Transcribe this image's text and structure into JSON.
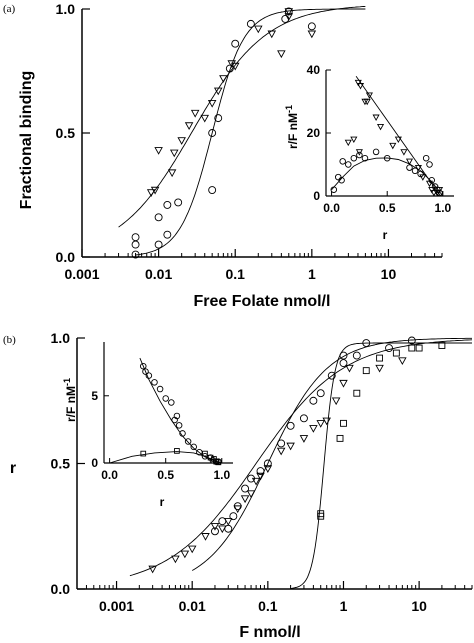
{
  "chart_data": [
    {
      "panel": "(a)",
      "type": "scatter",
      "xscale": "log",
      "xlim": [
        0.001,
        50
      ],
      "ylim": [
        0,
        1.0
      ],
      "xticks": [
        0.001,
        0.01,
        0.1,
        1,
        10
      ],
      "xtick_labels": [
        "0.001",
        "0.01",
        "0.1",
        "1",
        "10"
      ],
      "yticks": [
        0,
        0.5,
        1.0
      ],
      "ytick_labels": [
        "0.0",
        "0.5",
        "1.0"
      ],
      "xlabel": "Free Folate  nmol/l",
      "ylabel": "Fractional binding",
      "series": [
        {
          "marker": "circle",
          "points": [
            [
              0.005,
              0.01
            ],
            [
              0.005,
              0.05
            ],
            [
              0.005,
              0.08
            ],
            [
              0.01,
              0.05
            ],
            [
              0.01,
              0.16
            ],
            [
              0.013,
              0.09
            ],
            [
              0.013,
              0.21
            ],
            [
              0.018,
              0.22
            ],
            [
              0.05,
              0.27
            ],
            [
              0.05,
              0.5
            ],
            [
              0.06,
              0.56
            ],
            [
              0.085,
              0.76
            ],
            [
              0.1,
              0.86
            ],
            [
              0.16,
              0.94
            ],
            [
              0.45,
              0.96
            ],
            [
              0.5,
              0.99
            ],
            [
              1.0,
              0.93
            ]
          ],
          "fit": {
            "type": "hill",
            "k": 0.05,
            "n": 2.1,
            "ymin": 0,
            "ymax": 1.0,
            "xrange": [
              0.005,
              5
            ]
          }
        },
        {
          "marker": "triangle",
          "points": [
            [
              0.008,
              0.26
            ],
            [
              0.009,
              0.27
            ],
            [
              0.01,
              0.43
            ],
            [
              0.015,
              0.34
            ],
            [
              0.016,
              0.42
            ],
            [
              0.02,
              0.47
            ],
            [
              0.025,
              0.53
            ],
            [
              0.03,
              0.58
            ],
            [
              0.04,
              0.56
            ],
            [
              0.05,
              0.62
            ],
            [
              0.06,
              0.67
            ],
            [
              0.07,
              0.72
            ],
            [
              0.09,
              0.78
            ],
            [
              0.1,
              0.77
            ],
            [
              0.2,
              0.92
            ],
            [
              0.3,
              0.9
            ],
            [
              0.4,
              0.82
            ],
            [
              0.5,
              0.97
            ],
            [
              0.5,
              0.99
            ],
            [
              1.0,
              0.9
            ]
          ],
          "fit": {
            "type": "hill",
            "k": 0.028,
            "n": 0.9,
            "ymin": 0,
            "ymax": 1.02,
            "xrange": [
              0.003,
              5
            ]
          }
        }
      ],
      "inset": {
        "type": "scatter",
        "xlabel": "r",
        "ylabel": "r/F  nM",
        "ylabel_sup": "-1",
        "xlim": [
          -0.05,
          1.1
        ],
        "ylim": [
          0,
          40
        ],
        "xticks": [
          0,
          0.5,
          1.0
        ],
        "xtick_labels": [
          "0.0",
          "0.5",
          "1.0"
        ],
        "yticks": [
          0,
          20,
          40
        ],
        "ytick_labels": [
          "0",
          "20",
          "40"
        ],
        "series": [
          {
            "marker": "triangle",
            "points": [
              [
                0.24,
                36
              ],
              [
                0.26,
                35
              ],
              [
                0.3,
                30
              ],
              [
                0.32,
                30
              ],
              [
                0.34,
                32
              ],
              [
                0.4,
                25
              ],
              [
                0.44,
                22
              ],
              [
                0.6,
                18
              ],
              [
                0.65,
                14
              ],
              [
                0.15,
                17
              ],
              [
                0.2,
                18
              ],
              [
                0.25,
                14
              ],
              [
                0.55,
                16
              ],
              [
                0.7,
                11
              ],
              [
                0.78,
                9
              ],
              [
                0.82,
                6
              ],
              [
                0.88,
                4
              ],
              [
                0.9,
                2
              ],
              [
                0.92,
                1
              ],
              [
                0.95,
                1
              ],
              [
                0.97,
                2
              ]
            ],
            "fit_line": [
              [
                0.22,
                38
              ],
              [
                0.98,
                0
              ]
            ]
          },
          {
            "marker": "circle",
            "points": [
              [
                0.02,
                2
              ],
              [
                0.06,
                6
              ],
              [
                0.09,
                5
              ],
              [
                0.1,
                11
              ],
              [
                0.15,
                10
              ],
              [
                0.2,
                12
              ],
              [
                0.25,
                13
              ],
              [
                0.3,
                12
              ],
              [
                0.4,
                14
              ],
              [
                0.5,
                12
              ],
              [
                0.7,
                9
              ],
              [
                0.75,
                8
              ],
              [
                0.8,
                7
              ],
              [
                0.85,
                12
              ],
              [
                0.88,
                10
              ],
              [
                0.9,
                5
              ],
              [
                0.93,
                3
              ],
              [
                0.95,
                2
              ],
              [
                0.97,
                1
              ]
            ],
            "fit_curve": [
              [
                0.0,
                2
              ],
              [
                0.1,
                6
              ],
              [
                0.2,
                9.5
              ],
              [
                0.3,
                11.3
              ],
              [
                0.4,
                12
              ],
              [
                0.5,
                12.1
              ],
              [
                0.6,
                11.6
              ],
              [
                0.7,
                10.2
              ],
              [
                0.8,
                8
              ],
              [
                0.9,
                4.5
              ],
              [
                1.0,
                0
              ]
            ]
          }
        ]
      }
    },
    {
      "panel": "(b)",
      "type": "scatter",
      "xscale": "log",
      "xlim": [
        0.0003,
        50
      ],
      "ylim": [
        0,
        1.0
      ],
      "xticks": [
        0.001,
        0.01,
        0.1,
        1,
        10
      ],
      "xtick_labels": [
        "0.001",
        "0.01",
        "0.1",
        "1",
        "10"
      ],
      "yticks": [
        0,
        0.5,
        1.0
      ],
      "ytick_labels": [
        "0.0",
        "0.5",
        "1.0"
      ],
      "xlabel": "F   nmol/l",
      "ylabel": "r",
      "series": [
        {
          "marker": "triangle",
          "points": [
            [
              0.003,
              0.08
            ],
            [
              0.006,
              0.12
            ],
            [
              0.008,
              0.14
            ],
            [
              0.01,
              0.16
            ],
            [
              0.015,
              0.21
            ],
            [
              0.02,
              0.25
            ],
            [
              0.025,
              0.24
            ],
            [
              0.03,
              0.27
            ],
            [
              0.04,
              0.32
            ],
            [
              0.05,
              0.36
            ],
            [
              0.06,
              0.38
            ],
            [
              0.07,
              0.43
            ],
            [
              0.08,
              0.45
            ],
            [
              0.1,
              0.48
            ],
            [
              0.15,
              0.55
            ],
            [
              0.2,
              0.57
            ],
            [
              0.3,
              0.6
            ],
            [
              0.4,
              0.64
            ],
            [
              0.5,
              0.66
            ],
            [
              0.6,
              0.67
            ],
            [
              0.8,
              0.75
            ],
            [
              1.0,
              0.82
            ],
            [
              1.2,
              0.88
            ],
            [
              3,
              0.88
            ],
            [
              6,
              0.91
            ]
          ],
          "fit": {
            "type": "hill",
            "k": 0.07,
            "n": 0.75,
            "ymin": 0,
            "ymax": 1.0,
            "xrange": [
              0.0015,
              50
            ]
          }
        },
        {
          "marker": "circle",
          "points": [
            [
              0.02,
              0.23
            ],
            [
              0.025,
              0.27
            ],
            [
              0.03,
              0.24
            ],
            [
              0.035,
              0.29
            ],
            [
              0.04,
              0.33
            ],
            [
              0.05,
              0.4
            ],
            [
              0.06,
              0.44
            ],
            [
              0.08,
              0.47
            ],
            [
              0.1,
              0.5
            ],
            [
              0.15,
              0.58
            ],
            [
              0.2,
              0.65
            ],
            [
              0.3,
              0.68
            ],
            [
              0.4,
              0.75
            ],
            [
              0.5,
              0.78
            ],
            [
              0.7,
              0.85
            ],
            [
              1.0,
              0.9
            ],
            [
              1.0,
              0.93
            ],
            [
              1.5,
              0.93
            ],
            [
              2,
              0.98
            ],
            [
              4,
              0.96
            ],
            [
              8,
              0.99
            ]
          ],
          "fit": {
            "type": "hill",
            "k": 0.1,
            "n": 1.1,
            "ymin": 0,
            "ymax": 1.0,
            "xrange": [
              0.01,
              50
            ]
          }
        },
        {
          "marker": "square",
          "points": [
            [
              0.5,
              0.29
            ],
            [
              0.5,
              0.3
            ],
            [
              0.9,
              0.6
            ],
            [
              1.0,
              0.66
            ],
            [
              1.5,
              0.78
            ],
            [
              2,
              0.87
            ],
            [
              3,
              0.92
            ],
            [
              5,
              0.94
            ],
            [
              8,
              0.96
            ],
            [
              10,
              0.96
            ],
            [
              20,
              0.97
            ]
          ],
          "fit": {
            "type": "hill",
            "k": 0.55,
            "n": 6,
            "ymin": 0,
            "ymax": 0.98,
            "xrange": [
              0.2,
              50
            ]
          }
        }
      ],
      "inset": {
        "type": "scatter",
        "xlabel": "r",
        "ylabel": "r/F  nM",
        "ylabel_sup": "-1",
        "xlim": [
          -0.05,
          1.1
        ],
        "ylim": [
          0,
          9
        ],
        "xticks": [
          0,
          0.5,
          1.0
        ],
        "xtick_labels": [
          "0.0",
          "0.5",
          "1.0"
        ],
        "yticks": [
          0,
          5
        ],
        "ytick_labels": [
          "0",
          "5"
        ],
        "series": [
          {
            "marker": "circle",
            "points": [
              [
                0.3,
                7.2
              ],
              [
                0.32,
                6.8
              ],
              [
                0.35,
                6.5
              ],
              [
                0.4,
                6.0
              ],
              [
                0.45,
                5.5
              ],
              [
                0.5,
                4.8
              ],
              [
                0.55,
                4.5
              ],
              [
                0.58,
                3.2
              ],
              [
                0.6,
                3.5
              ],
              [
                0.62,
                2.8
              ],
              [
                0.65,
                2.2
              ],
              [
                0.7,
                1.6
              ],
              [
                0.75,
                1.2
              ],
              [
                0.8,
                0.8
              ],
              [
                0.85,
                0.5
              ],
              [
                0.9,
                0.4
              ],
              [
                0.92,
                0.2
              ],
              [
                0.95,
                0.1
              ],
              [
                0.97,
                0.1
              ]
            ],
            "fit_curve": [
              [
                0.27,
                7.8
              ],
              [
                0.35,
                6.2
              ],
              [
                0.45,
                4.6
              ],
              [
                0.55,
                3.2
              ],
              [
                0.65,
                2.0
              ],
              [
                0.75,
                1.1
              ],
              [
                0.85,
                0.45
              ],
              [
                0.95,
                0.1
              ],
              [
                1.0,
                0
              ]
            ]
          },
          {
            "marker": "square",
            "points": [
              [
                0.3,
                0.7
              ],
              [
                0.6,
                0.9
              ],
              [
                0.85,
                0.7
              ],
              [
                0.9,
                0.4
              ],
              [
                0.93,
                0.3
              ],
              [
                0.95,
                0.1
              ],
              [
                0.97,
                0.05
              ]
            ],
            "fit_curve": [
              [
                0.0,
                0.0
              ],
              [
                0.2,
                0.5
              ],
              [
                0.4,
                0.75
              ],
              [
                0.6,
                0.85
              ],
              [
                0.75,
                0.75
              ],
              [
                0.85,
                0.5
              ],
              [
                0.93,
                0.2
              ],
              [
                1.0,
                0.0
              ]
            ]
          }
        ]
      }
    }
  ]
}
